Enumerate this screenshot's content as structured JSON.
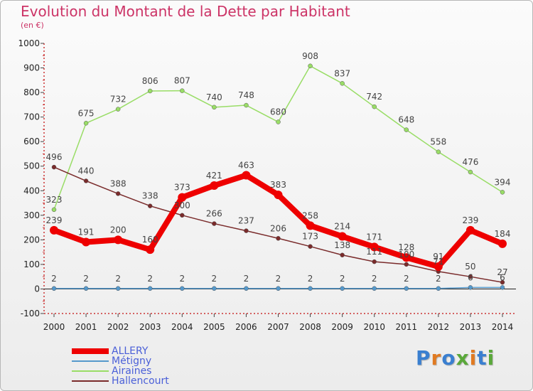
{
  "header": {
    "title": "Evolution du Montant de la Dette par Habitant",
    "subtitle": "(en €)"
  },
  "brand": {
    "text": "Proxiti",
    "colors": [
      "#3a7fd0",
      "#e07a22",
      "#3a7fd0",
      "#5aa83a",
      "#e07a22",
      "#3a7fd0",
      "#5aa83a"
    ]
  },
  "chart_data": {
    "type": "line",
    "title": "Evolution du Montant de la Dette par Habitant",
    "subtitle": "(en €)",
    "xlabel": "",
    "ylabel": "",
    "x": [
      "2000",
      "2001",
      "2002",
      "2003",
      "2004",
      "2005",
      "2006",
      "2007",
      "2008",
      "2009",
      "2010",
      "2011",
      "2012",
      "2013",
      "2014"
    ],
    "ylim": [
      -100,
      1000
    ],
    "yticks": [
      -100,
      0,
      100,
      200,
      300,
      400,
      500,
      600,
      700,
      800,
      900,
      1000
    ],
    "grid": false,
    "legend": "bottom-left",
    "series": [
      {
        "name": "ALLERY",
        "color": "#ee0000",
        "emphasis": true,
        "values": [
          239,
          191,
          200,
          160,
          373,
          421,
          463,
          383,
          258,
          214,
          171,
          128,
          91,
          239,
          184
        ],
        "labels": [
          "239",
          "191",
          "200",
          "160",
          "373",
          "421",
          "463",
          "383",
          "258",
          "214",
          "171",
          "128",
          "91",
          "239",
          "184"
        ]
      },
      {
        "name": "Métigny",
        "color": "#5599cc",
        "emphasis": false,
        "values": [
          2,
          2,
          2,
          2,
          2,
          2,
          2,
          2,
          2,
          2,
          2,
          2,
          2,
          6,
          6
        ],
        "labels": [
          "2",
          "2",
          "2",
          "2",
          "2",
          "2",
          "2",
          "2",
          "2",
          "2",
          "2",
          "2",
          "2",
          "6",
          "6"
        ]
      },
      {
        "name": "Airaines",
        "color": "#99dd66",
        "emphasis": false,
        "values": [
          323,
          675,
          732,
          806,
          807,
          740,
          748,
          680,
          908,
          837,
          742,
          648,
          558,
          476,
          394
        ],
        "labels": [
          "323",
          "675",
          "732",
          "806",
          "807",
          "740",
          "748",
          "680",
          "908",
          "837",
          "742",
          "648",
          "558",
          "476",
          "394"
        ]
      },
      {
        "name": "Hallencourt",
        "color": "#7a2b2b",
        "emphasis": false,
        "values": [
          496,
          440,
          388,
          338,
          300,
          266,
          237,
          206,
          173,
          138,
          111,
          100,
          71,
          50,
          27
        ],
        "labels": [
          "496",
          "440",
          "388",
          "338",
          "300",
          "266",
          "237",
          "206",
          "173",
          "138",
          "111",
          "100",
          "71",
          "50",
          "27"
        ]
      }
    ]
  }
}
